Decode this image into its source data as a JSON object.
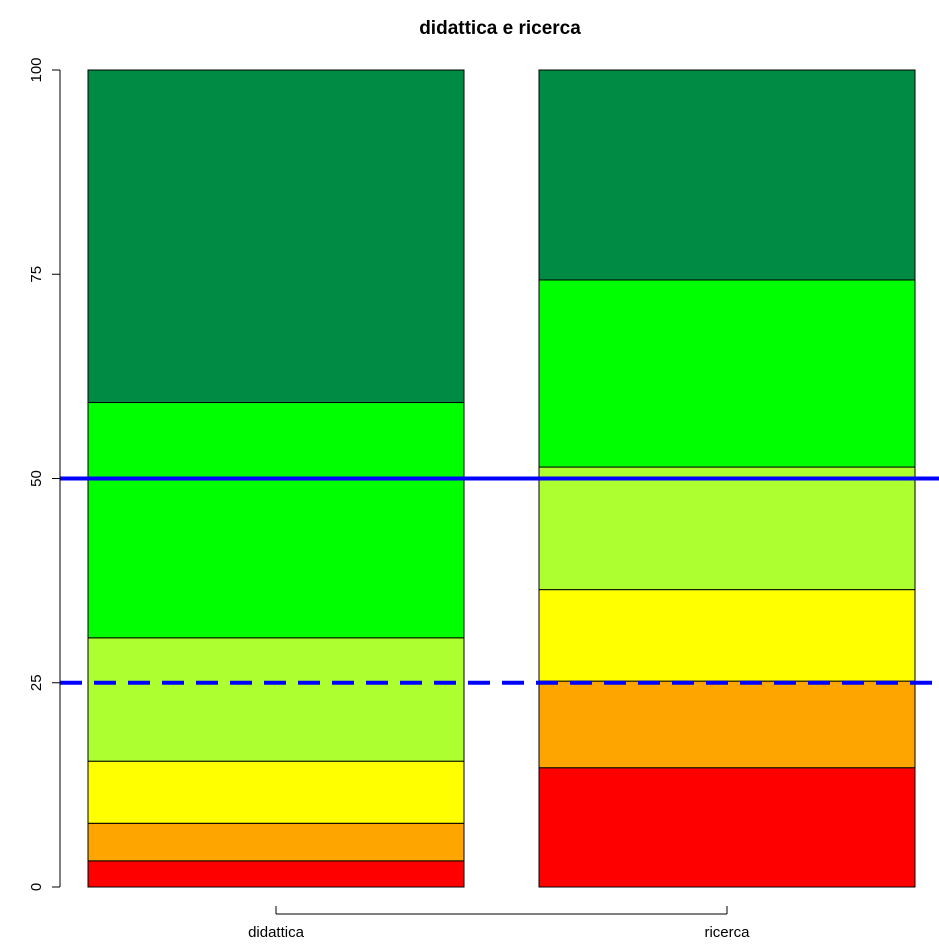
{
  "chart_data": {
    "type": "bar",
    "stacked": true,
    "title": "didattica e ricerca",
    "xlabel": "",
    "ylabel": "",
    "ylim": [
      0,
      100
    ],
    "yticks": [
      0,
      25,
      50,
      75,
      100
    ],
    "ytick_labels": [
      "0",
      "25",
      "50",
      "75",
      "100"
    ],
    "categories": [
      "didattica",
      "ricerca"
    ],
    "colors": [
      "#ff0000",
      "#ffa500",
      "#ffff00",
      "#adff2f",
      "#00ff00",
      "#008b45"
    ],
    "series": [
      {
        "color": "#ff0000",
        "values": [
          3.2,
          14.6
        ]
      },
      {
        "color": "#ffa500",
        "values": [
          4.6,
          10.6
        ]
      },
      {
        "color": "#ffff00",
        "values": [
          7.6,
          11.2
        ]
      },
      {
        "color": "#adff2f",
        "values": [
          15.1,
          15.0
        ]
      },
      {
        "color": "#00ff00",
        "values": [
          28.8,
          22.9
        ]
      },
      {
        "color": "#008b45",
        "values": [
          40.7,
          25.7
        ]
      }
    ],
    "reference_lines": [
      {
        "y": 50,
        "style": "solid",
        "color": "#0000ff"
      },
      {
        "y": 25,
        "style": "dashed",
        "color": "#0000ff"
      }
    ],
    "grid": false,
    "legend": "none"
  }
}
